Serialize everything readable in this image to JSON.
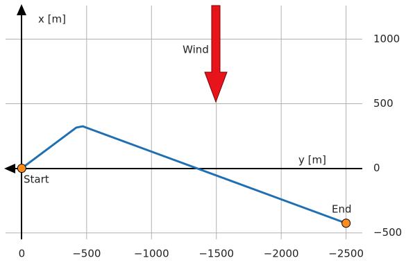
{
  "chart_data": {
    "type": "line",
    "x_label": "y [m]",
    "y_label": "x [m]",
    "x": [
      0,
      -420,
      -470,
      -2500
    ],
    "series": [
      {
        "color": "#1f6fb2",
        "values": [
          0,
          315,
          325,
          -425
        ]
      }
    ],
    "marker_color": "#ff8c1a",
    "xlim": [
      125,
      -2625
    ],
    "ylim": [
      -550,
      1260
    ],
    "xticks": [
      0,
      {
        "value": -500,
        "label": "−500"
      },
      {
        "value": -1000,
        "label": "−1000"
      },
      {
        "value": -1500,
        "label": "−1500"
      },
      {
        "value": -2000,
        "label": "−2000"
      },
      {
        "value": -2500,
        "label": "−2500"
      }
    ],
    "yticks": [
      1000,
      500,
      0,
      {
        "value": -500,
        "label": "−500"
      }
    ],
    "grid": true,
    "wind_label": "Wind",
    "start_label": "Start",
    "end_label": "End"
  }
}
